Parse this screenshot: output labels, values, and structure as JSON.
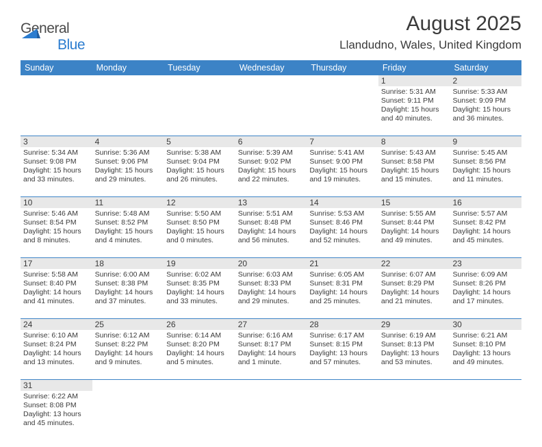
{
  "logo": {
    "text_gray": "General",
    "text_blue": "Blue"
  },
  "title": "August 2025",
  "location": "Llandudno, Wales, United Kingdom",
  "colors": {
    "header_bg": "#3c83c6",
    "header_text": "#ffffff",
    "daynum_bg": "#e8e8e8",
    "text": "#3a3a3a",
    "row_border": "#3c83c6",
    "logo_blue": "#2b7ccf"
  },
  "day_headers": [
    "Sunday",
    "Monday",
    "Tuesday",
    "Wednesday",
    "Thursday",
    "Friday",
    "Saturday"
  ],
  "weeks": [
    {
      "nums": [
        "",
        "",
        "",
        "",
        "",
        "1",
        "2"
      ],
      "cells": [
        {
          "l1": "",
          "l2": "",
          "l3": "",
          "l4": ""
        },
        {
          "l1": "",
          "l2": "",
          "l3": "",
          "l4": ""
        },
        {
          "l1": "",
          "l2": "",
          "l3": "",
          "l4": ""
        },
        {
          "l1": "",
          "l2": "",
          "l3": "",
          "l4": ""
        },
        {
          "l1": "",
          "l2": "",
          "l3": "",
          "l4": ""
        },
        {
          "l1": "Sunrise: 5:31 AM",
          "l2": "Sunset: 9:11 PM",
          "l3": "Daylight: 15 hours",
          "l4": "and 40 minutes."
        },
        {
          "l1": "Sunrise: 5:33 AM",
          "l2": "Sunset: 9:09 PM",
          "l3": "Daylight: 15 hours",
          "l4": "and 36 minutes."
        }
      ]
    },
    {
      "nums": [
        "3",
        "4",
        "5",
        "6",
        "7",
        "8",
        "9"
      ],
      "cells": [
        {
          "l1": "Sunrise: 5:34 AM",
          "l2": "Sunset: 9:08 PM",
          "l3": "Daylight: 15 hours",
          "l4": "and 33 minutes."
        },
        {
          "l1": "Sunrise: 5:36 AM",
          "l2": "Sunset: 9:06 PM",
          "l3": "Daylight: 15 hours",
          "l4": "and 29 minutes."
        },
        {
          "l1": "Sunrise: 5:38 AM",
          "l2": "Sunset: 9:04 PM",
          "l3": "Daylight: 15 hours",
          "l4": "and 26 minutes."
        },
        {
          "l1": "Sunrise: 5:39 AM",
          "l2": "Sunset: 9:02 PM",
          "l3": "Daylight: 15 hours",
          "l4": "and 22 minutes."
        },
        {
          "l1": "Sunrise: 5:41 AM",
          "l2": "Sunset: 9:00 PM",
          "l3": "Daylight: 15 hours",
          "l4": "and 19 minutes."
        },
        {
          "l1": "Sunrise: 5:43 AM",
          "l2": "Sunset: 8:58 PM",
          "l3": "Daylight: 15 hours",
          "l4": "and 15 minutes."
        },
        {
          "l1": "Sunrise: 5:45 AM",
          "l2": "Sunset: 8:56 PM",
          "l3": "Daylight: 15 hours",
          "l4": "and 11 minutes."
        }
      ]
    },
    {
      "nums": [
        "10",
        "11",
        "12",
        "13",
        "14",
        "15",
        "16"
      ],
      "cells": [
        {
          "l1": "Sunrise: 5:46 AM",
          "l2": "Sunset: 8:54 PM",
          "l3": "Daylight: 15 hours",
          "l4": "and 8 minutes."
        },
        {
          "l1": "Sunrise: 5:48 AM",
          "l2": "Sunset: 8:52 PM",
          "l3": "Daylight: 15 hours",
          "l4": "and 4 minutes."
        },
        {
          "l1": "Sunrise: 5:50 AM",
          "l2": "Sunset: 8:50 PM",
          "l3": "Daylight: 15 hours",
          "l4": "and 0 minutes."
        },
        {
          "l1": "Sunrise: 5:51 AM",
          "l2": "Sunset: 8:48 PM",
          "l3": "Daylight: 14 hours",
          "l4": "and 56 minutes."
        },
        {
          "l1": "Sunrise: 5:53 AM",
          "l2": "Sunset: 8:46 PM",
          "l3": "Daylight: 14 hours",
          "l4": "and 52 minutes."
        },
        {
          "l1": "Sunrise: 5:55 AM",
          "l2": "Sunset: 8:44 PM",
          "l3": "Daylight: 14 hours",
          "l4": "and 49 minutes."
        },
        {
          "l1": "Sunrise: 5:57 AM",
          "l2": "Sunset: 8:42 PM",
          "l3": "Daylight: 14 hours",
          "l4": "and 45 minutes."
        }
      ]
    },
    {
      "nums": [
        "17",
        "18",
        "19",
        "20",
        "21",
        "22",
        "23"
      ],
      "cells": [
        {
          "l1": "Sunrise: 5:58 AM",
          "l2": "Sunset: 8:40 PM",
          "l3": "Daylight: 14 hours",
          "l4": "and 41 minutes."
        },
        {
          "l1": "Sunrise: 6:00 AM",
          "l2": "Sunset: 8:38 PM",
          "l3": "Daylight: 14 hours",
          "l4": "and 37 minutes."
        },
        {
          "l1": "Sunrise: 6:02 AM",
          "l2": "Sunset: 8:35 PM",
          "l3": "Daylight: 14 hours",
          "l4": "and 33 minutes."
        },
        {
          "l1": "Sunrise: 6:03 AM",
          "l2": "Sunset: 8:33 PM",
          "l3": "Daylight: 14 hours",
          "l4": "and 29 minutes."
        },
        {
          "l1": "Sunrise: 6:05 AM",
          "l2": "Sunset: 8:31 PM",
          "l3": "Daylight: 14 hours",
          "l4": "and 25 minutes."
        },
        {
          "l1": "Sunrise: 6:07 AM",
          "l2": "Sunset: 8:29 PM",
          "l3": "Daylight: 14 hours",
          "l4": "and 21 minutes."
        },
        {
          "l1": "Sunrise: 6:09 AM",
          "l2": "Sunset: 8:26 PM",
          "l3": "Daylight: 14 hours",
          "l4": "and 17 minutes."
        }
      ]
    },
    {
      "nums": [
        "24",
        "25",
        "26",
        "27",
        "28",
        "29",
        "30"
      ],
      "cells": [
        {
          "l1": "Sunrise: 6:10 AM",
          "l2": "Sunset: 8:24 PM",
          "l3": "Daylight: 14 hours",
          "l4": "and 13 minutes."
        },
        {
          "l1": "Sunrise: 6:12 AM",
          "l2": "Sunset: 8:22 PM",
          "l3": "Daylight: 14 hours",
          "l4": "and 9 minutes."
        },
        {
          "l1": "Sunrise: 6:14 AM",
          "l2": "Sunset: 8:20 PM",
          "l3": "Daylight: 14 hours",
          "l4": "and 5 minutes."
        },
        {
          "l1": "Sunrise: 6:16 AM",
          "l2": "Sunset: 8:17 PM",
          "l3": "Daylight: 14 hours",
          "l4": "and 1 minute."
        },
        {
          "l1": "Sunrise: 6:17 AM",
          "l2": "Sunset: 8:15 PM",
          "l3": "Daylight: 13 hours",
          "l4": "and 57 minutes."
        },
        {
          "l1": "Sunrise: 6:19 AM",
          "l2": "Sunset: 8:13 PM",
          "l3": "Daylight: 13 hours",
          "l4": "and 53 minutes."
        },
        {
          "l1": "Sunrise: 6:21 AM",
          "l2": "Sunset: 8:10 PM",
          "l3": "Daylight: 13 hours",
          "l4": "and 49 minutes."
        }
      ]
    },
    {
      "nums": [
        "31",
        "",
        "",
        "",
        "",
        "",
        ""
      ],
      "cells": [
        {
          "l1": "Sunrise: 6:22 AM",
          "l2": "Sunset: 8:08 PM",
          "l3": "Daylight: 13 hours",
          "l4": "and 45 minutes."
        },
        {
          "l1": "",
          "l2": "",
          "l3": "",
          "l4": ""
        },
        {
          "l1": "",
          "l2": "",
          "l3": "",
          "l4": ""
        },
        {
          "l1": "",
          "l2": "",
          "l3": "",
          "l4": ""
        },
        {
          "l1": "",
          "l2": "",
          "l3": "",
          "l4": ""
        },
        {
          "l1": "",
          "l2": "",
          "l3": "",
          "l4": ""
        },
        {
          "l1": "",
          "l2": "",
          "l3": "",
          "l4": ""
        }
      ]
    }
  ]
}
